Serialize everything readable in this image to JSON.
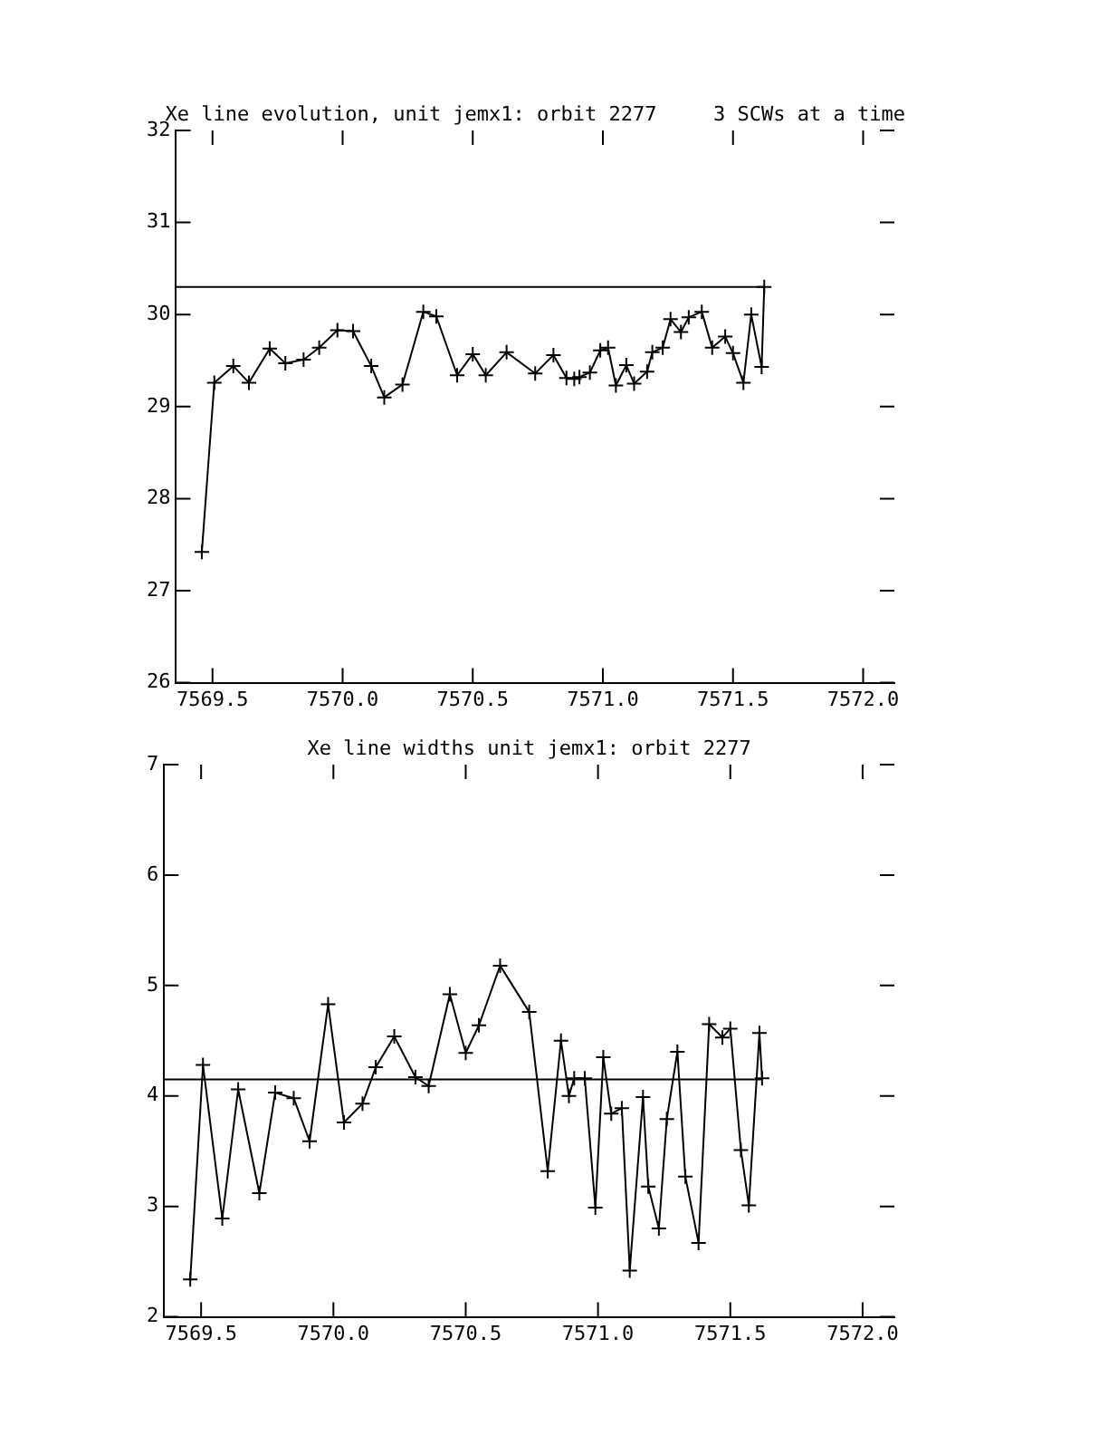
{
  "chart_data": [
    {
      "type": "line",
      "title": "Xe line evolution, unit jemx1: orbit 2277",
      "subtitle": "3 SCWs at a time",
      "marker": "cross",
      "color": "#000000",
      "grid": false,
      "legend": false,
      "x": [
        7569.459,
        7569.507,
        7569.58,
        7569.64,
        7569.72,
        7569.78,
        7569.85,
        7569.91,
        7569.98,
        7570.04,
        7570.11,
        7570.16,
        7570.23,
        7570.31,
        7570.36,
        7570.44,
        7570.5,
        7570.55,
        7570.63,
        7570.74,
        7570.81,
        7570.86,
        7570.89,
        7570.91,
        7570.95,
        7570.99,
        7571.02,
        7571.05,
        7571.09,
        7571.12,
        7571.17,
        7571.19,
        7571.23,
        7571.26,
        7571.3,
        7571.33,
        7571.38,
        7571.42,
        7571.47,
        7571.5,
        7571.54,
        7571.57,
        7571.61,
        7571.62
      ],
      "values": [
        27.42,
        29.26,
        29.44,
        29.26,
        29.63,
        29.47,
        29.51,
        29.64,
        29.83,
        29.82,
        29.44,
        29.1,
        29.24,
        30.03,
        29.98,
        29.34,
        29.57,
        29.34,
        29.59,
        29.36,
        29.56,
        29.31,
        29.3,
        29.32,
        29.37,
        29.61,
        29.64,
        29.23,
        29.45,
        29.25,
        29.38,
        29.59,
        29.64,
        29.95,
        29.81,
        29.97,
        30.03,
        29.64,
        29.76,
        29.58,
        29.26,
        30.0,
        29.43,
        30.3
      ],
      "xlim": [
        7569.36,
        7572.12
      ],
      "xticks": [
        {
          "value": 7569.5,
          "label": "7569.5"
        },
        {
          "value": 7570,
          "label": "7570.0"
        },
        {
          "value": 7570.5,
          "label": "7570.5"
        },
        {
          "value": 7571,
          "label": "7571.0"
        },
        {
          "value": 7571.5,
          "label": "7571.5"
        },
        {
          "value": 7572,
          "label": "7572.0"
        }
      ],
      "ylim": [
        26,
        32
      ],
      "yticks": [
        26,
        27,
        28,
        29,
        30,
        31,
        32
      ],
      "ref_lines": [
        {
          "axis": "y",
          "value": 30.3
        }
      ]
    },
    {
      "type": "line",
      "title": "Xe line widths unit jemx1: orbit 2277",
      "marker": "cross",
      "color": "#000000",
      "grid": false,
      "legend": false,
      "x": [
        7569.459,
        7569.507,
        7569.58,
        7569.64,
        7569.72,
        7569.78,
        7569.85,
        7569.91,
        7569.98,
        7570.04,
        7570.11,
        7570.16,
        7570.23,
        7570.31,
        7570.36,
        7570.44,
        7570.5,
        7570.55,
        7570.63,
        7570.74,
        7570.81,
        7570.86,
        7570.89,
        7570.91,
        7570.95,
        7570.99,
        7571.02,
        7571.05,
        7571.09,
        7571.12,
        7571.17,
        7571.19,
        7571.23,
        7571.26,
        7571.3,
        7571.33,
        7571.38,
        7571.42,
        7571.47,
        7571.5,
        7571.54,
        7571.57,
        7571.61,
        7571.62
      ],
      "values": [
        2.34,
        4.28,
        2.89,
        4.06,
        3.12,
        4.03,
        3.98,
        3.59,
        4.83,
        3.76,
        3.93,
        4.26,
        4.54,
        4.17,
        4.09,
        4.92,
        4.39,
        4.64,
        5.18,
        4.76,
        3.32,
        4.5,
        4.0,
        4.16,
        4.16,
        2.99,
        4.35,
        3.84,
        3.89,
        2.42,
        3.99,
        3.18,
        2.8,
        3.79,
        4.4,
        3.27,
        2.67,
        4.65,
        4.53,
        4.61,
        3.51,
        3.01,
        4.57,
        4.16
      ],
      "xlim": [
        7569.36,
        7572.12
      ],
      "xticks": [
        {
          "value": 7569.5,
          "label": "7569.5"
        },
        {
          "value": 7570,
          "label": "7570.0"
        },
        {
          "value": 7570.5,
          "label": "7570.5"
        },
        {
          "value": 7571,
          "label": "7571.0"
        },
        {
          "value": 7571.5,
          "label": "7571.5"
        },
        {
          "value": 7572,
          "label": "7572.0"
        }
      ],
      "ylim": [
        2,
        7
      ],
      "yticks": [
        2,
        3,
        4,
        5,
        6,
        7
      ],
      "ref_lines": [
        {
          "axis": "y",
          "value": 4.15
        }
      ]
    }
  ]
}
